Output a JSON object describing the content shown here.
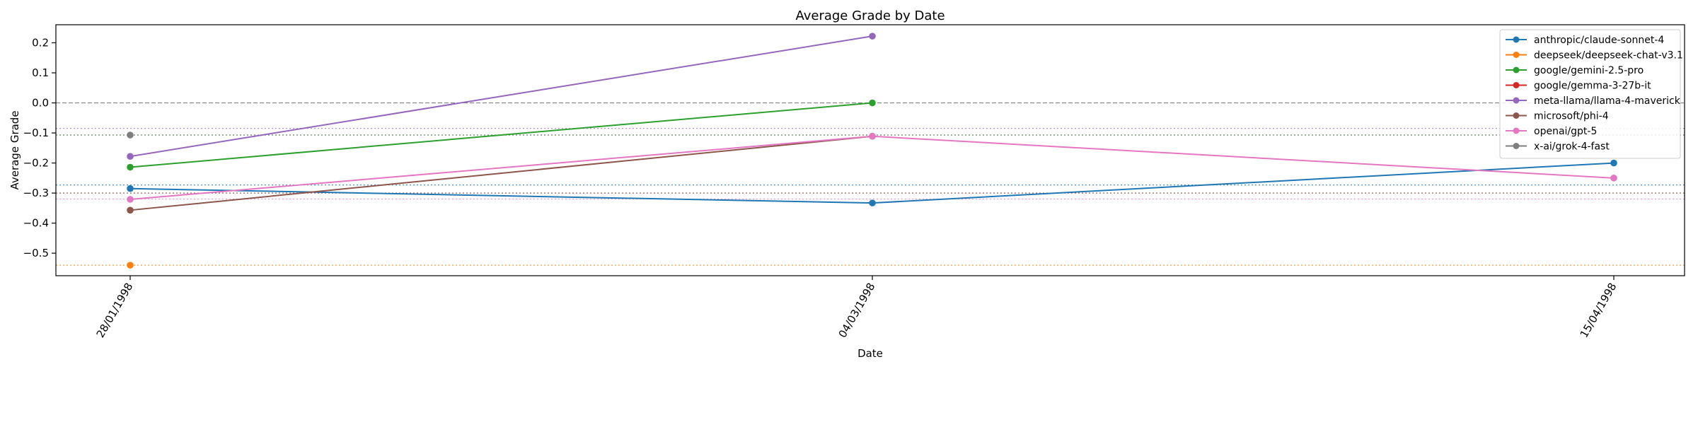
{
  "chart_data": {
    "type": "line",
    "title": "Average Grade by Date",
    "xlabel": "Date",
    "ylabel": "Average Grade",
    "x": [
      "28/01/1998",
      "04/03/1998",
      "15/04/1998"
    ],
    "ylim": [
      -0.575,
      0.26
    ],
    "yticks": [
      0.2,
      0.1,
      0.0,
      -0.1,
      -0.2,
      -0.3,
      -0.4,
      -0.5
    ],
    "ytick_labels": [
      "0.2",
      "0.1",
      "0.0",
      "−0.1",
      "−0.2",
      "−0.3",
      "−0.4",
      "−0.5"
    ],
    "zero_line": 0.0,
    "legend_position": "top-right",
    "grid": false,
    "series": [
      {
        "name": "anthropic/claude-sonnet-4",
        "color": "#1f77b4",
        "values": [
          -0.285,
          -0.333,
          -0.2
        ],
        "mean": -0.273
      },
      {
        "name": "deepseek/deepseek-chat-v3.1",
        "color": "#ff7f0e",
        "values": [
          -0.54,
          null,
          null
        ],
        "mean": -0.54
      },
      {
        "name": "google/gemini-2.5-pro",
        "color": "#2ca02c",
        "values": [
          -0.214,
          0.0,
          null
        ],
        "mean": -0.107
      },
      {
        "name": "google/gemma-3-27b-it",
        "color": "#d62728",
        "values": [
          null,
          null,
          null
        ],
        "mean": -0.3
      },
      {
        "name": "meta-llama/llama-4-maverick",
        "color": "#9467bd",
        "values": [
          -0.178,
          0.222,
          null
        ],
        "mean": -0.085
      },
      {
        "name": "microsoft/phi-4",
        "color": "#8c564b",
        "values": [
          -0.357,
          -0.111,
          null
        ],
        "mean": -0.3
      },
      {
        "name": "openai/gpt-5",
        "color": "#e377c2",
        "values": [
          -0.321,
          -0.111,
          -0.25
        ],
        "mean": -0.32
      },
      {
        "name": "x-ai/grok-4-fast",
        "color": "#7f7f7f",
        "values": [
          -0.107,
          null,
          null
        ],
        "mean": -0.107
      }
    ]
  }
}
